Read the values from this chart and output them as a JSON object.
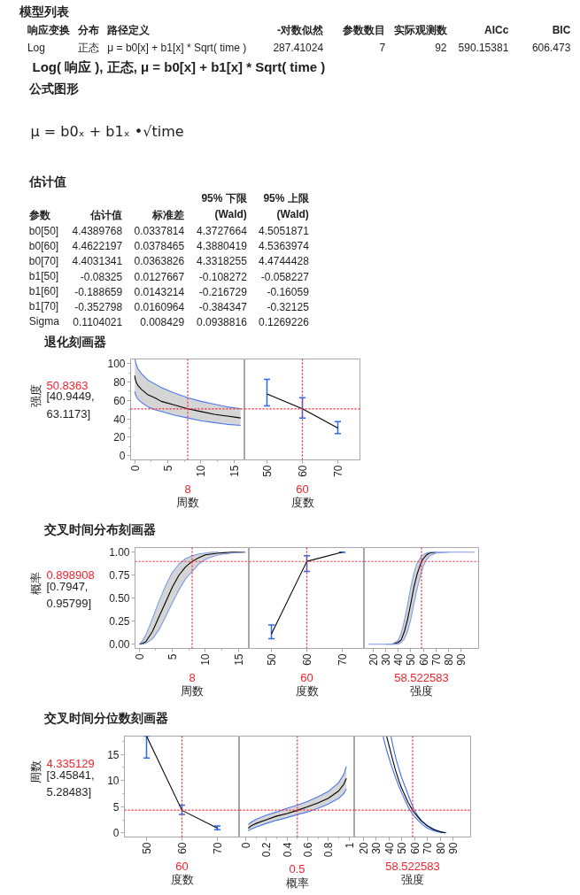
{
  "chart_data": [
    {
      "type": "other",
      "title": "模型列表",
      "categories": [
        "响应变换",
        "分布",
        "路径定义",
        "-对数似然",
        "参数数目",
        "实际观测数",
        "AICc",
        "BIC"
      ],
      "cell_labels": [
        [
          "Log",
          "正态",
          "μ = b0[x] + b1[x] * Sqrt( time )",
          "287.41024",
          "7",
          "92",
          "590.15381",
          "606.473"
        ]
      ]
    },
    {
      "type": "other",
      "title": "Log( 响应 ), 正态, μ = b0[x] + b1[x] * Sqrt( time )",
      "subtitle": "公式图形",
      "annotations": [
        "μ = b0ₓ + b1ₓ •√time"
      ]
    },
    {
      "type": "other",
      "title": "估计值",
      "categories": [
        "参数",
        "估计值",
        "标准差",
        "95% 下限\n(Wald)",
        "95% 上限\n(Wald)"
      ],
      "cell_labels": [
        [
          "b0[50]",
          "4.4389768",
          "0.0337814",
          "4.3727664",
          "4.5051871"
        ],
        [
          "b0[60]",
          "4.4622197",
          "0.0378465",
          "4.3880419",
          "4.5363974"
        ],
        [
          "b0[70]",
          "4.4031341",
          "0.0363826",
          "4.3318255",
          "4.4744428"
        ],
        [
          "b1[50]",
          "-0.08325",
          "0.0127667",
          "-0.108272",
          "-0.058227"
        ],
        [
          "b1[60]",
          "-0.188659",
          "0.0143214",
          "-0.216729",
          "-0.16059"
        ],
        [
          "b1[70]",
          "-0.352798",
          "0.0160964",
          "-0.384347",
          "-0.32125"
        ],
        [
          "Sigma",
          "0.1104021",
          "0.008429",
          "0.0938816",
          "0.1269226"
        ]
      ]
    },
    {
      "type": "line",
      "title": "退化刻画器",
      "ylabel": "强度",
      "xlabel": "周数",
      "x": [
        0,
        0.03,
        0.25,
        0.5,
        1,
        2,
        3,
        4,
        6,
        8,
        10,
        12,
        14,
        16
      ],
      "series": [
        {
          "color": "#000000",
          "values": [
            87,
            84,
            79,
            76,
            72,
            66,
            63,
            59,
            55,
            51,
            48,
            45,
            43,
            41
          ],
          "lower": [
            70,
            68,
            64,
            61,
            58,
            53,
            50,
            48,
            44,
            41,
            38,
            36,
            34,
            33
          ],
          "upper": [
            105,
            104,
            98,
            94,
            89,
            82,
            78,
            74,
            68,
            63,
            59,
            56,
            53,
            51
          ]
        },
        {
          "color": "#4a78ee",
          "values": [
            70,
            68,
            64,
            61,
            58,
            53,
            50,
            48,
            44,
            41,
            38,
            36,
            34,
            33
          ]
        },
        {
          "color": "#4a78ee",
          "values": [
            105,
            104,
            98,
            94,
            89,
            82,
            78,
            74,
            68,
            63,
            59,
            56,
            53,
            51
          ]
        }
      ],
      "xlim": [
        -0.64,
        16.64
      ],
      "ylim": [
        -4.5,
        105
      ],
      "xticks": [
        0,
        5,
        10,
        15,
        {
          "value": 2.5,
          "label": null
        },
        {
          "value": 7.5,
          "label": null
        },
        {
          "value": 12.5,
          "label": null
        }
      ],
      "yticks": [
        0,
        20,
        40,
        60,
        80,
        100,
        {
          "value": 10,
          "label": null
        },
        {
          "value": 30,
          "label": null
        },
        {
          "value": 50,
          "label": null
        },
        {
          "value": 70,
          "label": null
        },
        {
          "value": 90,
          "label": null
        }
      ],
      "ref_lines": [
        {
          "axis": "x",
          "value": 8,
          "label": "8",
          "color": "#f5222d",
          "line_style": "dotted"
        },
        {
          "axis": "y",
          "value": 50.8363,
          "label": "50.8363",
          "color": "#f5222d",
          "line_style": "dotted"
        }
      ],
      "annotations": [
        "[40.9449,\n63.1173]"
      ]
    },
    {
      "type": "line",
      "xlabel": "度数",
      "x": [
        50,
        60,
        70
      ],
      "series": [
        {
          "color": "#000000",
          "values": [
            67,
            51,
            30
          ],
          "errors": [
            [
              54,
              83
            ],
            [
              41,
              63
            ],
            [
              24,
              37
            ]
          ]
        }
      ],
      "xlim": [
        43.75,
        76.25
      ],
      "ylim": [
        -4.5,
        105
      ],
      "xticks": [
        50,
        60,
        70
      ],
      "tick_labels": "x",
      "ref_lines": [
        {
          "axis": "x",
          "value": 60,
          "label": "60",
          "color": "#f5222d",
          "line_style": "dotted"
        },
        {
          "axis": "y",
          "value": 50.8363,
          "color": "#f5222d",
          "line_style": "dotted"
        }
      ]
    },
    {
      "type": "line",
      "title": "交叉时间分布刻画器",
      "ylabel": "概率",
      "xlabel": "周数",
      "x": [
        0,
        0.5,
        1,
        2,
        3,
        4,
        5,
        6,
        7,
        8,
        9,
        10,
        11,
        12,
        14,
        16
      ],
      "series": [
        {
          "color": "#000000",
          "values": [
            0,
            0.01,
            0.03,
            0.14,
            0.3,
            0.46,
            0.62,
            0.75,
            0.84,
            0.9,
            0.94,
            0.97,
            0.98,
            0.99,
            1,
            1
          ],
          "lower": [
            0,
            0,
            0.01,
            0.06,
            0.16,
            0.3,
            0.45,
            0.59,
            0.71,
            0.79,
            0.87,
            0.92,
            0.95,
            0.97,
            0.99,
            1
          ],
          "upper": [
            0,
            0.04,
            0.1,
            0.28,
            0.47,
            0.64,
            0.78,
            0.87,
            0.93,
            0.96,
            0.98,
            0.99,
            1,
            1,
            1,
            1
          ]
        },
        {
          "color": "#7f9de6",
          "x": [
            0.5,
            1,
            2,
            3,
            4,
            5,
            6,
            7,
            8,
            9,
            10,
            11,
            12,
            14,
            16
          ],
          "values": [
            0,
            0.01,
            0.06,
            0.16,
            0.3,
            0.45,
            0.59,
            0.71,
            0.79,
            0.87,
            0.92,
            0.95,
            0.97,
            0.99,
            1
          ]
        },
        {
          "color": "#7f9de6",
          "x": [
            0,
            0.5,
            1,
            2,
            3,
            4,
            5,
            6,
            7,
            8,
            9,
            10,
            11,
            12
          ],
          "values": [
            0,
            0.04,
            0.1,
            0.28,
            0.47,
            0.64,
            0.78,
            0.87,
            0.93,
            0.96,
            0.98,
            0.99,
            1,
            1
          ]
        }
      ],
      "xlim": [
        -0.64,
        16.64
      ],
      "ylim": [
        -0.045,
        1.05
      ],
      "xticks": [
        0,
        5,
        10,
        15,
        {
          "value": 2.5,
          "label": null
        },
        {
          "value": 7.5,
          "label": null
        },
        {
          "value": 12.5,
          "label": null
        }
      ],
      "yticks": [
        {
          "value": 0,
          "label": "0.00"
        },
        0.25,
        {
          "value": 0.5,
          "label": "0.50"
        },
        0.75,
        {
          "value": 1,
          "label": "1.00"
        }
      ],
      "ref_lines": [
        {
          "axis": "x",
          "value": 8,
          "label": "8",
          "color": "#f5222d",
          "line_style": "dotted"
        },
        {
          "axis": "y",
          "value": 0.898908,
          "label": "0.898908",
          "color": "#f5222d",
          "line_style": "dotted"
        }
      ],
      "annotations": [
        "[0.7947,\n0.95799]"
      ]
    },
    {
      "type": "line",
      "xlabel": "度数",
      "x": [
        50,
        60,
        70
      ],
      "series": [
        {
          "color": "#000000",
          "values": [
            0.11,
            0.9,
            1
          ],
          "errors": [
            [
              0.06,
              0.21
            ],
            [
              0.79,
              0.96
            ],
            [
              1,
              1
            ]
          ]
        }
      ],
      "xlim": [
        43.75,
        76.25
      ],
      "ylim": [
        -0.045,
        1.05
      ],
      "xticks": [
        50,
        60,
        70
      ],
      "tick_labels": "x",
      "ref_lines": [
        {
          "axis": "x",
          "value": 60,
          "label": "60",
          "color": "#f5222d",
          "line_style": "dotted"
        },
        {
          "axis": "y",
          "value": 0.898908,
          "color": "#f5222d",
          "line_style": "dotted"
        }
      ]
    },
    {
      "type": "line",
      "xlabel": "强度",
      "x": [
        16.5,
        30,
        35,
        40,
        42.5,
        45,
        47.5,
        50,
        52.5,
        55,
        58.5,
        60,
        62.5,
        65,
        70,
        80,
        100.5
      ],
      "series": [
        {
          "color": "#000000",
          "values": [
            null,
            null,
            0,
            0.02,
            0.05,
            0.14,
            0.27,
            0.44,
            0.62,
            0.76,
            0.9,
            0.93,
            0.97,
            0.99,
            1,
            null,
            null
          ],
          "lower": [
            0,
            0,
            0,
            0,
            0.02,
            0.06,
            0.14,
            0.27,
            0.44,
            0.6,
            0.79,
            0.85,
            0.92,
            0.96,
            0.99,
            1,
            1
          ],
          "upper": [
            0,
            0,
            0,
            0.04,
            0.12,
            0.26,
            0.43,
            0.62,
            0.77,
            0.88,
            0.96,
            0.97,
            0.99,
            1,
            1,
            1,
            1
          ]
        },
        {
          "color": "#7f9de6",
          "x": [
            16.5,
            30,
            35,
            40,
            42.5,
            45,
            47.5,
            50,
            52.5,
            55,
            58.5,
            60,
            62.5,
            65,
            70,
            80
          ],
          "values": [
            0,
            0,
            0,
            0,
            0.02,
            0.06,
            0.14,
            0.27,
            0.44,
            0.6,
            0.79,
            0.85,
            0.92,
            0.96,
            0.99,
            1
          ]
        },
        {
          "color": "#7f9de6",
          "x": [
            30,
            35,
            40,
            42.5,
            45,
            47.5,
            50,
            52.5,
            55,
            58.5,
            60,
            62.5,
            65,
            70,
            80,
            100.5
          ],
          "values": [
            0,
            0,
            0.04,
            0.12,
            0.26,
            0.43,
            0.62,
            0.77,
            0.88,
            0.96,
            0.97,
            0.99,
            1,
            1,
            1,
            1
          ]
        }
      ],
      "xlim": [
        13.3,
        103.7
      ],
      "ylim": [
        -0.045,
        1.05
      ],
      "xticks": [
        20,
        30,
        40,
        50,
        60,
        70,
        80,
        90
      ],
      "tick_labels": "x",
      "ref_lines": [
        {
          "axis": "x",
          "value": 58.522583,
          "label": "58.522583",
          "color": "#f5222d",
          "line_style": "dotted"
        },
        {
          "axis": "y",
          "value": 0.898908,
          "color": "#f5222d",
          "line_style": "dotted"
        }
      ]
    },
    {
      "type": "line",
      "title": "交叉时间分位数刻画器",
      "ylabel": "周数",
      "xlabel": "度数",
      "x": [
        50,
        60,
        70
      ],
      "series": [
        {
          "color": "#000000",
          "values": [
            18.5,
            4.3,
            0.9
          ],
          "errors": [
            [
              14.3,
              18.5
            ],
            [
              3.5,
              5.3
            ],
            [
              0.6,
              1.3
            ]
          ]
        }
      ],
      "xlim": [
        43.75,
        76.25
      ],
      "ylim": [
        -0.8,
        18.5
      ],
      "xticks": [
        50,
        60,
        70
      ],
      "yticks": [
        0,
        5,
        10,
        15,
        {
          "value": 2.5,
          "label": null
        },
        {
          "value": 7.5,
          "label": null
        },
        {
          "value": 12.5,
          "label": null
        },
        {
          "value": 17.5,
          "label": null
        }
      ],
      "ref_lines": [
        {
          "axis": "x",
          "value": 60,
          "label": "60",
          "color": "#f5222d",
          "line_style": "dotted"
        },
        {
          "axis": "y",
          "value": 4.335129,
          "label": "4.335129",
          "color": "#f5222d",
          "line_style": "dotted"
        }
      ],
      "annotations": [
        "[3.45841,\n5.28483]"
      ]
    },
    {
      "type": "line",
      "xlabel": "概率",
      "x": [
        0.025,
        0.05,
        0.1,
        0.2,
        0.3,
        0.4,
        0.5,
        0.6,
        0.7,
        0.8,
        0.9,
        0.95,
        0.975
      ],
      "series": [
        {
          "color": "#000000",
          "values": [
            0.9,
            1.3,
            1.8,
            2.5,
            3.2,
            3.7,
            4.3,
            5,
            5.7,
            6.6,
            8,
            9.3,
            10.4
          ],
          "lower": [
            0.4,
            0.7,
            1.1,
            1.8,
            2.4,
            2.9,
            3.5,
            4,
            4.7,
            5.5,
            6.6,
            7.5,
            8.4
          ],
          "upper": [
            1.6,
            2,
            2.6,
            3.4,
            4,
            4.7,
            5.3,
            6,
            6.9,
            7.9,
            9.6,
            11.2,
            12.7
          ]
        },
        {
          "color": "#4a78ee",
          "values": [
            0.4,
            0.7,
            1.1,
            1.8,
            2.4,
            2.9,
            3.5,
            4,
            4.7,
            5.5,
            6.6,
            7.5,
            8.4
          ]
        },
        {
          "color": "#4a78ee",
          "values": [
            1.6,
            2,
            2.6,
            3.4,
            4,
            4.7,
            5.3,
            6,
            6.9,
            7.9,
            9.6,
            11.2,
            12.7
          ]
        }
      ],
      "xlim": [
        -0.06,
        1.055
      ],
      "ylim": [
        -0.8,
        18.5
      ],
      "xticks": [
        0,
        0.2,
        0.4,
        0.6,
        0.8,
        1,
        {
          "value": 0.1,
          "label": null
        },
        {
          "value": 0.3,
          "label": null
        },
        {
          "value": 0.5,
          "label": null
        },
        {
          "value": 0.7,
          "label": null
        },
        {
          "value": 0.9,
          "label": null
        }
      ],
      "tick_labels": "x",
      "ref_lines": [
        {
          "axis": "x",
          "value": 0.5,
          "label": "0.5",
          "color": "#f5222d",
          "line_style": "dotted"
        },
        {
          "axis": "y",
          "value": 4.335129,
          "color": "#f5222d",
          "line_style": "dotted"
        }
      ]
    },
    {
      "type": "line",
      "xlabel": "强度",
      "series": [
        {
          "color": "#3d6ff2",
          "x": [
            35.5,
            38,
            40,
            42,
            45,
            47,
            50,
            53,
            56,
            58.5,
            60,
            63,
            66.5,
            70,
            75,
            80,
            83
          ],
          "values": [
            18.4,
            16,
            14.4,
            12.8,
            10.7,
            9.4,
            7.6,
            6,
            4.5,
            3.6,
            3.1,
            2.3,
            1.5,
            0.9,
            0.4,
            0.1,
            0
          ]
        },
        {
          "color": "#3d6ff2",
          "x": [
            41.6,
            44,
            46,
            50,
            53,
            56,
            59.7,
            63,
            66,
            70,
            73.6,
            78,
            82,
            85
          ],
          "values": [
            18.4,
            15.7,
            13.7,
            10.5,
            8.6,
            6.6,
            4.4,
            3.1,
            2.2,
            1.4,
            0.9,
            0.4,
            0.1,
            0
          ]
        },
        {
          "color": "#000000",
          "x": [
            38.3,
            40,
            42.7,
            45,
            48,
            50,
            55,
            58.5,
            60,
            65,
            70,
            75,
            80,
            84
          ],
          "values": [
            18.4,
            16.8,
            14.2,
            12.1,
            9.8,
            8.5,
            5.8,
            4.3,
            3.8,
            2.3,
            1.3,
            0.6,
            0.2,
            0
          ]
        }
      ],
      "xlim": [
        13.3,
        103.7
      ],
      "ylim": [
        -0.8,
        18.5
      ],
      "xticks": [
        20,
        30,
        40,
        50,
        60,
        70,
        80,
        90
      ],
      "tick_labels": "x",
      "ref_lines": [
        {
          "axis": "x",
          "value": 58.522583,
          "label": "58.522583",
          "color": "#f5222d",
          "line_style": "dotted"
        },
        {
          "axis": "y",
          "value": 4.335129,
          "color": "#f5222d",
          "line_style": "dotted"
        }
      ]
    }
  ]
}
